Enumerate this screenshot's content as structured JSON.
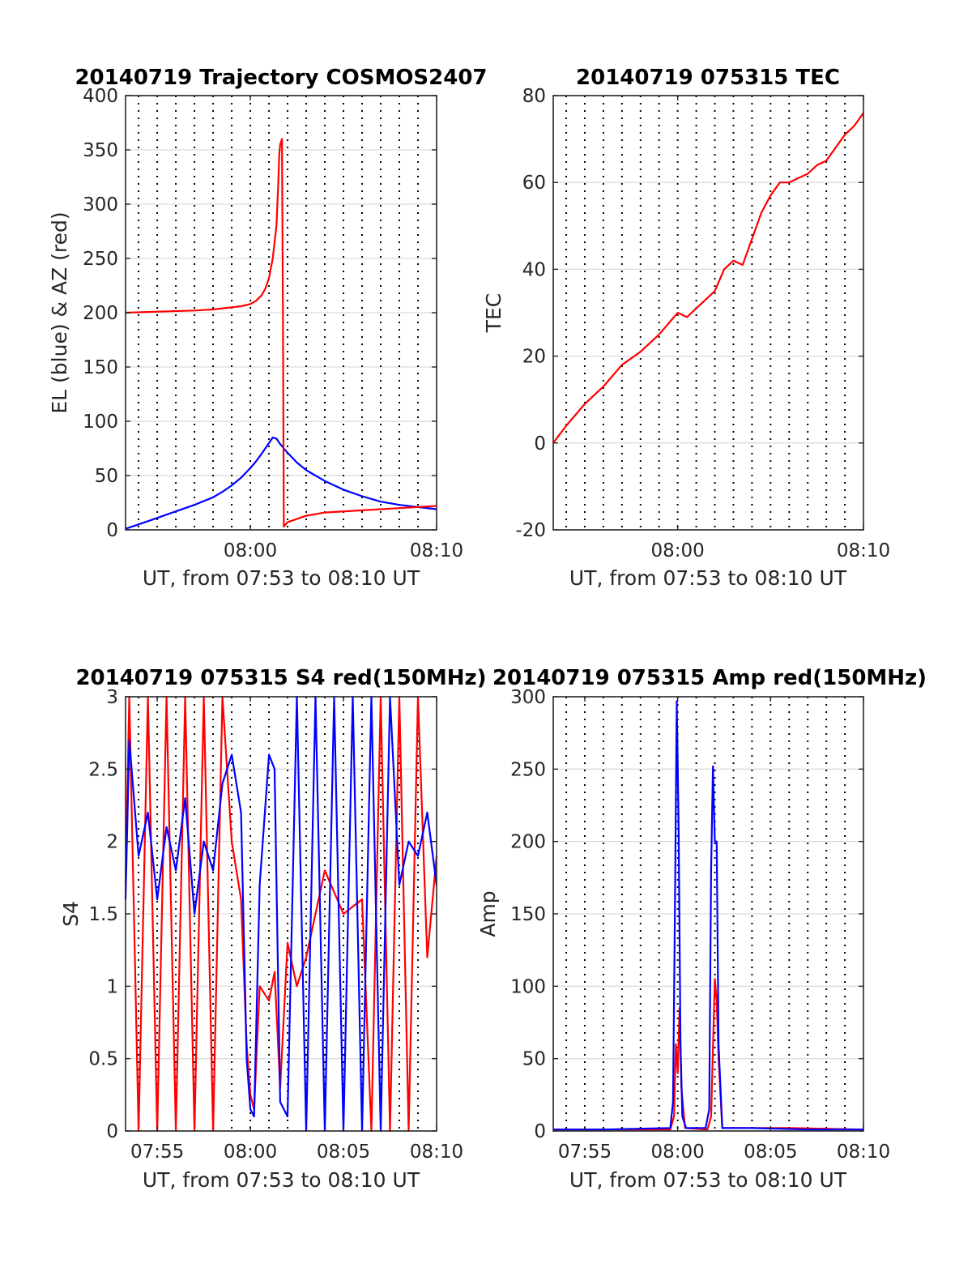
{
  "colors": {
    "blue": "#0000ff",
    "red": "#ff0000",
    "grid": "#dcdcdc"
  },
  "chart_data": [
    {
      "type": "line",
      "title": "20140719 Trajectory COSMOS2407",
      "xlabel": "UT, from 07:53 to 08:10 UT",
      "ylabel": "EL (blue) & AZ (red)",
      "xlim": [
        473.3,
        490.0
      ],
      "ylim": [
        0,
        400
      ],
      "xticks": [
        480,
        490
      ],
      "xtick_labels": [
        "08:00",
        "08:10"
      ],
      "yticks": [
        0,
        50,
        100,
        150,
        200,
        250,
        300,
        350,
        400
      ],
      "ytick_labels": [
        "0",
        "50",
        "100",
        "150",
        "200",
        "250",
        "300",
        "350",
        "400"
      ],
      "grid": {
        "x_minor_dotted": true,
        "y_major": true
      },
      "series": [
        {
          "color": "blue",
          "x": [
            473.3,
            474,
            475,
            476,
            477,
            478,
            478.5,
            479,
            479.5,
            480,
            480.3,
            480.6,
            480.8,
            481,
            481.2,
            481.4,
            481.6,
            482,
            482.5,
            483,
            484,
            485,
            486,
            487,
            488,
            489,
            490
          ],
          "y": [
            1,
            5,
            11,
            17,
            23,
            30,
            35,
            41,
            48,
            57,
            63,
            70,
            75,
            80,
            85,
            84,
            79,
            71,
            62,
            55,
            45,
            37,
            31,
            26,
            23,
            21,
            19
          ]
        },
        {
          "color": "red",
          "x": [
            473.3,
            475,
            477,
            478,
            478.5,
            479,
            479.5,
            480,
            480.3,
            480.6,
            480.8,
            481,
            481.2,
            481.4,
            481.5,
            481.55,
            481.6,
            481.7,
            481.75,
            481.8,
            481.9,
            482,
            482.5,
            483,
            484,
            486,
            488,
            490
          ],
          "y": [
            200,
            201,
            202,
            203,
            204,
            205,
            206,
            208,
            211,
            216,
            222,
            232,
            250,
            280,
            320,
            345,
            355,
            360,
            200,
            3,
            5,
            7,
            10,
            13,
            16,
            18,
            20,
            22
          ]
        }
      ]
    },
    {
      "type": "line",
      "title": "20140719 075315 TEC",
      "xlabel": "UT, from 07:53 to 08:10 UT",
      "ylabel": "TEC",
      "xlim": [
        473.3,
        490.0
      ],
      "ylim": [
        -20,
        80
      ],
      "xticks": [
        480,
        490
      ],
      "xtick_labels": [
        "08:00",
        "08:10"
      ],
      "yticks": [
        -20,
        0,
        20,
        40,
        60,
        80
      ],
      "ytick_labels": [
        "-20",
        "0",
        "20",
        "40",
        "60",
        "80"
      ],
      "grid": {
        "x_minor_dotted": true,
        "y_major": true
      },
      "series": [
        {
          "color": "red",
          "x": [
            473.3,
            474,
            475,
            476,
            477,
            478,
            479,
            480,
            480.5,
            481,
            481.5,
            482,
            482.5,
            483,
            483.5,
            484,
            484.5,
            485,
            485.5,
            486,
            486.5,
            487,
            487.5,
            488,
            488.5,
            489,
            489.5,
            490
          ],
          "y": [
            0,
            4,
            9,
            13,
            18,
            21,
            25,
            30,
            29,
            31,
            33,
            35,
            40,
            42,
            41,
            47,
            53,
            57,
            60,
            60,
            61,
            62,
            64,
            65,
            68,
            71,
            73,
            76
          ]
        }
      ]
    },
    {
      "type": "line",
      "title": "20140719 075315 S4 red(150MHz)",
      "xlabel": "UT, from 07:53 to 08:10 UT",
      "ylabel": "S4",
      "xlim": [
        473.3,
        490.0
      ],
      "ylim": [
        0,
        3
      ],
      "xticks": [
        475,
        480,
        485,
        490
      ],
      "xtick_labels": [
        "07:55",
        "08:00",
        "08:05",
        "08:10"
      ],
      "yticks": [
        0,
        0.5,
        1,
        1.5,
        2,
        2.5,
        3
      ],
      "ytick_labels": [
        "0",
        "0.5",
        "1",
        "1.5",
        "2",
        "2.5",
        "3"
      ],
      "grid": {
        "x_minor_dotted": true,
        "y_major": true
      },
      "series": [
        {
          "color": "red",
          "x": [
            473.3,
            473.5,
            474,
            474.5,
            475,
            475.5,
            476,
            476.5,
            477,
            477.5,
            478,
            478.5,
            479,
            479.5,
            479.8,
            480,
            480.2,
            480.5,
            481,
            481.3,
            481.6,
            482,
            482.5,
            483,
            484,
            485,
            486,
            486.5,
            487,
            487.5,
            488,
            488.5,
            489,
            489.5,
            490
          ],
          "y": [
            1.7,
            3,
            0,
            3,
            0,
            3,
            0,
            3,
            0,
            3,
            0,
            3,
            2.0,
            1.6,
            0.6,
            0.25,
            0.15,
            1.0,
            0.9,
            1.1,
            0.3,
            1.3,
            1.0,
            1.2,
            1.8,
            1.5,
            1.6,
            0,
            3,
            0,
            3,
            0,
            3,
            1.2,
            1.9
          ]
        },
        {
          "color": "blue",
          "x": [
            473.3,
            473.5,
            474,
            474.5,
            475,
            475.5,
            476,
            476.5,
            477,
            477.5,
            478,
            478.5,
            479,
            479.5,
            479.8,
            480,
            480.2,
            480.5,
            481,
            481.3,
            481.6,
            482,
            482.5,
            483,
            483.5,
            484,
            484.5,
            485,
            485.5,
            486,
            486.5,
            487,
            487.5,
            488,
            488.5,
            489,
            489.5,
            490
          ],
          "y": [
            1.6,
            2.7,
            1.9,
            2.2,
            1.6,
            2.1,
            1.8,
            2.3,
            1.5,
            2.0,
            1.8,
            2.4,
            2.6,
            2.2,
            0.5,
            0.15,
            0.1,
            1.7,
            2.6,
            2.5,
            0.2,
            0.1,
            3,
            0,
            3,
            0,
            3,
            0,
            3,
            0,
            3,
            0,
            3,
            1.7,
            2.0,
            1.9,
            2.2,
            1.7
          ]
        }
      ]
    },
    {
      "type": "line",
      "title": "20140719 075315 Amp red(150MHz)",
      "xlabel": "UT, from 07:53 to 08:10 UT",
      "ylabel": "Amp",
      "xlim": [
        473.3,
        490.0
      ],
      "ylim": [
        0,
        300
      ],
      "xticks": [
        475,
        480,
        485,
        490
      ],
      "xtick_labels": [
        "07:55",
        "08:00",
        "08:05",
        "08:10"
      ],
      "yticks": [
        0,
        50,
        100,
        150,
        200,
        250,
        300
      ],
      "ytick_labels": [
        "0",
        "50",
        "100",
        "150",
        "200",
        "250",
        "300"
      ],
      "grid": {
        "x_minor_dotted": true,
        "y_major": true
      },
      "series": [
        {
          "color": "red",
          "x": [
            473.3,
            476,
            479.6,
            479.8,
            479.9,
            480.0,
            480.1,
            480.2,
            480.4,
            481.6,
            481.8,
            482.0,
            482.1,
            482.2,
            482.4,
            486,
            490
          ],
          "y": [
            1,
            1,
            1,
            10,
            60,
            40,
            85,
            30,
            2,
            1,
            10,
            105,
            90,
            50,
            2,
            2,
            1
          ]
        },
        {
          "color": "blue",
          "x": [
            473.3,
            476,
            479.6,
            479.75,
            479.85,
            479.95,
            480.05,
            480.15,
            480.25,
            480.45,
            481.5,
            481.7,
            481.8,
            481.9,
            482.0,
            482.1,
            482.2,
            482.4,
            484,
            487,
            490
          ],
          "y": [
            1,
            1,
            2,
            20,
            150,
            297,
            210,
            60,
            10,
            2,
            2,
            15,
            180,
            252,
            200,
            200,
            60,
            2,
            2,
            1,
            1
          ]
        }
      ]
    }
  ]
}
